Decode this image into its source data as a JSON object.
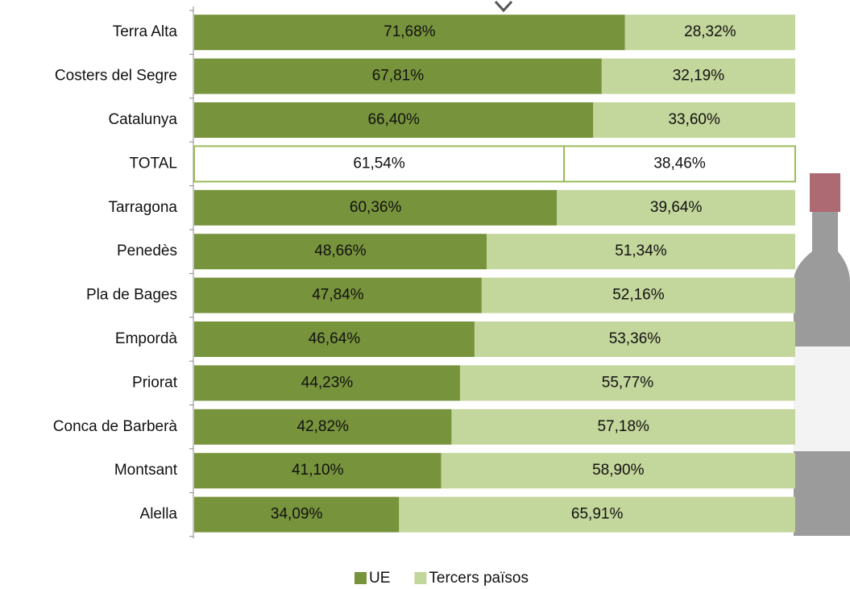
{
  "chart_data": {
    "type": "stacked-bar-horizontal",
    "categories": [
      "Terra Alta",
      "Costers del Segre",
      "Catalunya",
      "TOTAL",
      "Tarragona",
      "Penedès",
      "Pla de Bages",
      "Empordà",
      "Priorat",
      "Conca de Barberà",
      "Montsant",
      "Alella"
    ],
    "series": [
      {
        "name": "UE",
        "color": "#77933c",
        "values": [
          71.68,
          67.81,
          66.4,
          61.54,
          60.36,
          48.66,
          47.84,
          46.64,
          44.23,
          42.82,
          41.1,
          34.09
        ],
        "value_labels": [
          "71,68%",
          "67,81%",
          "66,40%",
          "61,54%",
          "60,36%",
          "48,66%",
          "47,84%",
          "46,64%",
          "44,23%",
          "42,82%",
          "41,10%",
          "34,09%"
        ]
      },
      {
        "name": "Tercers països",
        "color": "#c3d69b",
        "values": [
          28.32,
          32.19,
          33.6,
          38.46,
          39.64,
          51.34,
          52.16,
          53.36,
          55.77,
          57.18,
          58.9,
          65.91
        ],
        "value_labels": [
          "28,32%",
          "32,19%",
          "33,60%",
          "38,46%",
          "39,64%",
          "51,34%",
          "52,16%",
          "53,36%",
          "55,77%",
          "57,18%",
          "58,90%",
          "65,91%"
        ]
      }
    ],
    "xlim": [
      0,
      100
    ],
    "highlight": {
      "category": "TOTAL",
      "fill": "#ffffff",
      "stroke": "#9bbb59"
    },
    "legend": "bottom"
  }
}
